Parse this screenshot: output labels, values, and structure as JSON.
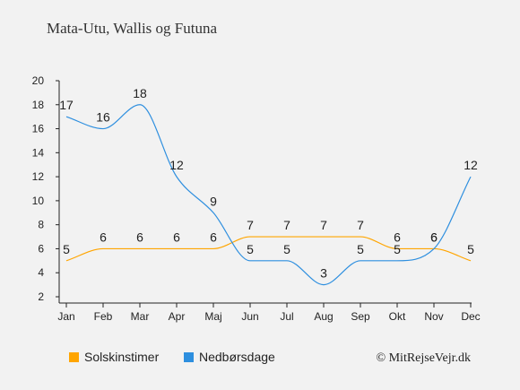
{
  "chart_data": {
    "type": "line",
    "title": "Mata-Utu, Wallis og Futuna",
    "categories": [
      "Jan",
      "Feb",
      "Mar",
      "Apr",
      "Maj",
      "Jun",
      "Jul",
      "Aug",
      "Sep",
      "Okt",
      "Nov",
      "Dec"
    ],
    "series": [
      {
        "name": "Solskinstimer",
        "color": "#ffa500",
        "values": [
          5,
          6,
          6,
          6,
          6,
          7,
          7,
          7,
          7,
          6,
          6,
          5
        ]
      },
      {
        "name": "Nedbørsdage",
        "color": "#2e8fdf",
        "values": [
          17,
          16,
          18,
          12,
          9,
          5,
          5,
          3,
          5,
          5,
          6,
          12
        ]
      }
    ],
    "ylim": [
      2,
      20
    ],
    "yticks": [
      2,
      4,
      6,
      8,
      10,
      12,
      14,
      16,
      18,
      20
    ],
    "grid": false,
    "legend_position": "bottom-left"
  },
  "credit": "© MitRejseVejr.dk"
}
